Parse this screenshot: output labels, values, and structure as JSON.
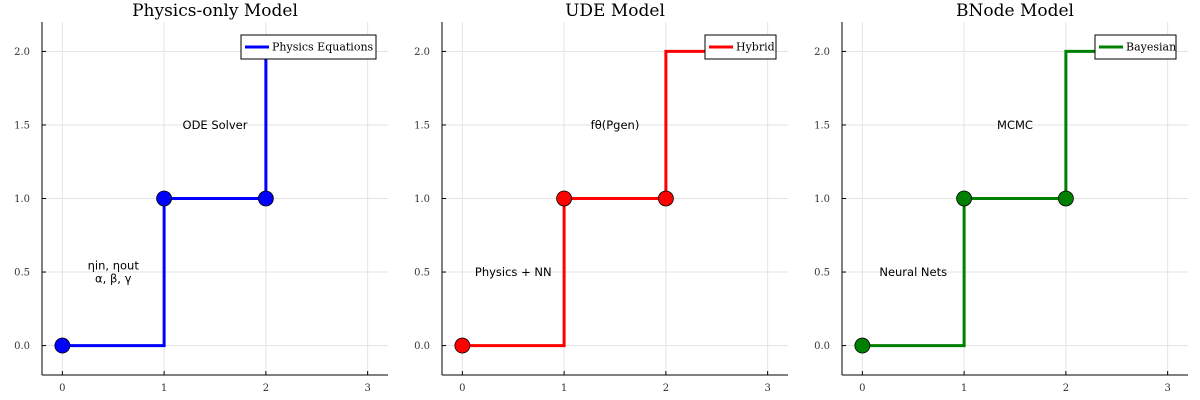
{
  "chart_data": [
    {
      "type": "line",
      "title": "Physics-only Model",
      "color": "#0000ff",
      "xlim": [
        -0.2,
        3.2
      ],
      "ylim": [
        -0.2,
        2.2
      ],
      "xticks": [
        0,
        1,
        2,
        3
      ],
      "yticks": [
        0.0,
        0.5,
        1.0,
        1.5,
        2.0
      ],
      "xtick_labels": [
        "0",
        "1",
        "2",
        "3"
      ],
      "ytick_labels": [
        "0.0",
        "0.5",
        "1.0",
        "1.5",
        "2.0"
      ],
      "grid": true,
      "legend": {
        "position": "top-right",
        "entries": [
          "Physics Equations"
        ]
      },
      "series": [
        {
          "name": "Physics Equations",
          "step": "post",
          "x": [
            0,
            1,
            2,
            3
          ],
          "y": [
            0,
            1,
            2,
            2
          ]
        }
      ],
      "markers": [
        {
          "x": 0,
          "y": 0
        },
        {
          "x": 1,
          "y": 1
        },
        {
          "x": 2,
          "y": 1
        }
      ],
      "annotations": [
        {
          "text": [
            "ODE Solver"
          ],
          "x": 1.5,
          "y": 1.5
        },
        {
          "text": [
            "ηin, ηout",
            "α, β, γ"
          ],
          "x": 0.5,
          "y": 0.5
        }
      ]
    },
    {
      "type": "line",
      "title": "UDE Model",
      "color": "#ff0000",
      "xlim": [
        -0.2,
        3.2
      ],
      "ylim": [
        -0.2,
        2.2
      ],
      "xticks": [
        0,
        1,
        2,
        3
      ],
      "yticks": [
        0.0,
        0.5,
        1.0,
        1.5,
        2.0
      ],
      "xtick_labels": [
        "0",
        "1",
        "2",
        "3"
      ],
      "ytick_labels": [
        "0.0",
        "0.5",
        "1.0",
        "1.5",
        "2.0"
      ],
      "grid": true,
      "legend": {
        "position": "top-right",
        "entries": [
          "Hybrid"
        ]
      },
      "series": [
        {
          "name": "Hybrid",
          "step": "post",
          "x": [
            0,
            1,
            2,
            3
          ],
          "y": [
            0,
            1,
            2,
            2
          ]
        }
      ],
      "markers": [
        {
          "x": 0,
          "y": 0
        },
        {
          "x": 1,
          "y": 1
        },
        {
          "x": 2,
          "y": 1
        }
      ],
      "annotations": [
        {
          "text": [
            "fθ(Pgen)"
          ],
          "x": 1.5,
          "y": 1.5
        },
        {
          "text": [
            "Physics + NN"
          ],
          "x": 0.5,
          "y": 0.5
        }
      ]
    },
    {
      "type": "line",
      "title": "BNode Model",
      "color": "#008000",
      "xlim": [
        -0.2,
        3.2
      ],
      "ylim": [
        -0.2,
        2.2
      ],
      "xticks": [
        0,
        1,
        2,
        3
      ],
      "yticks": [
        0.0,
        0.5,
        1.0,
        1.5,
        2.0
      ],
      "xtick_labels": [
        "0",
        "1",
        "2",
        "3"
      ],
      "ytick_labels": [
        "0.0",
        "0.5",
        "1.0",
        "1.5",
        "2.0"
      ],
      "grid": true,
      "legend": {
        "position": "top-right",
        "entries": [
          "Bayesian"
        ]
      },
      "series": [
        {
          "name": "Bayesian",
          "step": "post",
          "x": [
            0,
            1,
            2,
            3
          ],
          "y": [
            0,
            1,
            2,
            2
          ]
        }
      ],
      "markers": [
        {
          "x": 0,
          "y": 0
        },
        {
          "x": 1,
          "y": 1
        },
        {
          "x": 2,
          "y": 1
        }
      ],
      "annotations": [
        {
          "text": [
            "MCMC"
          ],
          "x": 1.5,
          "y": 1.5
        },
        {
          "text": [
            "Neural Nets"
          ],
          "x": 0.5,
          "y": 0.5
        }
      ]
    }
  ]
}
